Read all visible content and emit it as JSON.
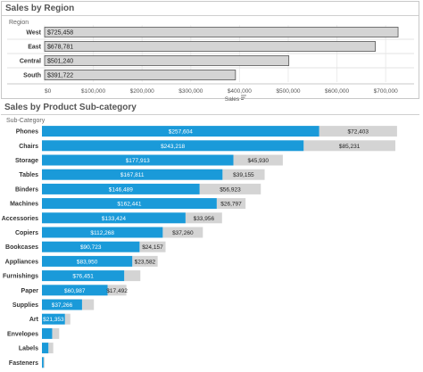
{
  "region_panel": {
    "title": "Sales by Region"
  },
  "subcat_panel": {
    "title": "Sales by Product Sub-category"
  },
  "chart_data": [
    {
      "type": "bar",
      "orientation": "horizontal",
      "title": "Sales by Region",
      "category_header": "Region",
      "xlabel": "Sales",
      "categories": [
        "West",
        "East",
        "Central",
        "South"
      ],
      "values": [
        725458,
        678781,
        501240,
        391722
      ],
      "value_labels": [
        "$725,458",
        "$678,781",
        "$501,240",
        "$391,722"
      ],
      "xlim": [
        0,
        740000
      ],
      "xticks": [
        0,
        100000,
        200000,
        300000,
        400000,
        500000,
        600000,
        700000
      ],
      "xtick_labels": [
        "$0",
        "$100,000",
        "$200,000",
        "$300,000",
        "$400,000",
        "$500,000",
        "$600,000",
        "$700,000"
      ],
      "colors": {
        "bar": "#d4d4d4",
        "bar_border": "#555555"
      }
    },
    {
      "type": "bar",
      "orientation": "horizontal",
      "stacked": true,
      "title": "Sales by Product Sub-category",
      "category_header": "Sub-Category",
      "categories": [
        "Phones",
        "Chairs",
        "Storage",
        "Tables",
        "Binders",
        "Machines",
        "Accessories",
        "Copiers",
        "Bookcases",
        "Appliances",
        "Furnishings",
        "Paper",
        "Supplies",
        "Art",
        "Envelopes",
        "Labels",
        "Fasteners"
      ],
      "series": [
        {
          "values": [
            257604,
            243218,
            177913,
            167811,
            146489,
            162441,
            133424,
            112268,
            90723,
            83950,
            76451,
            60987,
            37266,
            21353,
            9500,
            6000,
            1500
          ],
          "labels": [
            "$257,604",
            "$243,218",
            "$177,913",
            "$167,811",
            "$146,489",
            "$162,441",
            "$133,424",
            "$112,268",
            "$90,723",
            "$83,950",
            "$76,451",
            "$60,987",
            "$37,266",
            "$21,353",
            "",
            "",
            ""
          ]
        },
        {
          "values": [
            72403,
            85231,
            45930,
            39155,
            56923,
            26797,
            33956,
            37260,
            24157,
            23582,
            15000,
            17492,
            11000,
            5000,
            6500,
            4500,
            1000
          ],
          "labels": [
            "$72,403",
            "$85,231",
            "$45,930",
            "$39,155",
            "$56,923",
            "$26,797",
            "$33,956",
            "$37,260",
            "$24,157",
            "$23,582",
            "",
            "$17,492",
            "",
            "",
            "",
            "",
            ""
          ]
        }
      ],
      "xlim": [
        0,
        350000
      ],
      "colors": {
        "primary": "#1a9ad9",
        "secondary": "#d4d4d4"
      }
    }
  ]
}
